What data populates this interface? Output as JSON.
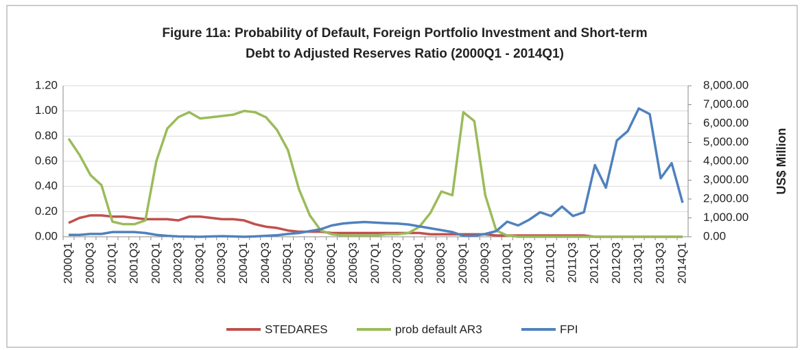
{
  "chart_data": {
    "type": "line",
    "title": "Figure 11a: Probability of Default, Foreign Portfolio Investment and Short-term Debt to Adjusted Reserves Ratio (2000Q1 - 2014Q1)",
    "y2label": "US$ Million",
    "categories": [
      "2000Q1",
      null,
      "2000Q3",
      null,
      "2001Q1",
      null,
      "2001Q3",
      null,
      "2002Q1",
      null,
      "2002Q3",
      null,
      "2003Q1",
      null,
      "2003Q3",
      null,
      "2004Q1",
      null,
      "2004Q3",
      null,
      "2005Q1",
      null,
      "2005Q3",
      null,
      "2006Q1",
      null,
      "2006Q3",
      null,
      "2007Q1",
      null,
      "2007Q3",
      null,
      "2008Q1",
      null,
      "2008Q3",
      null,
      "2009Q1",
      null,
      "2009Q3",
      null,
      "2010Q1",
      null,
      "2010Q3",
      null,
      "2011Q1",
      null,
      "2011Q3",
      null,
      "2012Q1",
      null,
      "2012Q3",
      null,
      "2013Q1",
      null,
      "2013Q3",
      null,
      "2014Q1"
    ],
    "series": [
      {
        "name": "STEDARES",
        "color": "#c0504d",
        "values": [
          0.11,
          0.15,
          0.17,
          0.17,
          0.16,
          0.16,
          0.15,
          0.14,
          0.14,
          0.14,
          0.13,
          0.16,
          0.16,
          0.15,
          0.14,
          0.14,
          0.13,
          0.1,
          0.08,
          0.07,
          0.05,
          0.04,
          0.04,
          0.04,
          0.03,
          0.03,
          0.03,
          0.03,
          0.03,
          0.03,
          0.03,
          0.03,
          0.03,
          0.02,
          0.02,
          0.02,
          0.02,
          0.02,
          0.02,
          0.01,
          0.01,
          0.01,
          0.01,
          0.01,
          0.01,
          0.01,
          0.01,
          0.01,
          0,
          0,
          0,
          0,
          0,
          0,
          0,
          0,
          0
        ]
      },
      {
        "name": "prob default AR3",
        "color": "#9bbb59",
        "values": [
          0.78,
          0.65,
          0.49,
          0.41,
          0.12,
          0.1,
          0.1,
          0.13,
          0.6,
          0.86,
          0.95,
          0.99,
          0.94,
          0.95,
          0.96,
          0.97,
          1.0,
          0.99,
          0.95,
          0.85,
          0.69,
          0.38,
          0.17,
          0.05,
          0.02,
          0.01,
          0.01,
          0.01,
          0.01,
          0.02,
          0.02,
          0.03,
          0.08,
          0.19,
          0.36,
          0.33,
          0.99,
          0.92,
          0.33,
          0.05,
          0.01,
          0,
          0,
          0,
          0,
          0,
          0,
          0,
          0,
          0,
          0,
          0,
          0,
          0,
          0,
          0,
          0
        ]
      },
      {
        "name": "FPI",
        "color": "#4f81bd",
        "axis": "y2",
        "values": [
          100,
          100,
          150,
          150,
          250,
          250,
          250,
          200,
          100,
          50,
          20,
          10,
          0,
          20,
          30,
          20,
          0,
          20,
          50,
          80,
          150,
          200,
          300,
          400,
          600,
          700,
          750,
          780,
          750,
          720,
          700,
          650,
          550,
          450,
          350,
          250,
          50,
          50,
          150,
          300,
          800,
          600,
          900,
          1300,
          1100,
          1600,
          1100,
          1300,
          3800,
          2600,
          5100,
          5600,
          6800,
          6500,
          3100,
          3900,
          1800
        ]
      }
    ],
    "ylim": [
      0,
      1.2
    ],
    "yticks": [
      {
        "value": 0,
        "label": "0.00"
      },
      {
        "value": 0.2,
        "label": "0.20"
      },
      {
        "value": 0.4,
        "label": "0.40"
      },
      {
        "value": 0.6,
        "label": "0.60"
      },
      {
        "value": 0.8,
        "label": "0.80"
      },
      {
        "value": 1,
        "label": "1.00"
      },
      {
        "value": 1.2,
        "label": "1.20"
      }
    ],
    "y2lim": [
      0,
      8000
    ],
    "y2ticks": [
      {
        "value": 0,
        "label": "0.00"
      },
      {
        "value": 1000,
        "label": "1,000.00"
      },
      {
        "value": 2000,
        "label": "2,000.00"
      },
      {
        "value": 3000,
        "label": "3,000.00"
      },
      {
        "value": 4000,
        "label": "4,000.00"
      },
      {
        "value": 5000,
        "label": "5,000.00"
      },
      {
        "value": 6000,
        "label": "6,000.00"
      },
      {
        "value": 7000,
        "label": "7,000.00"
      },
      {
        "value": 8000,
        "label": "8,000.00"
      }
    ],
    "grid": true,
    "legend": "bottom"
  }
}
